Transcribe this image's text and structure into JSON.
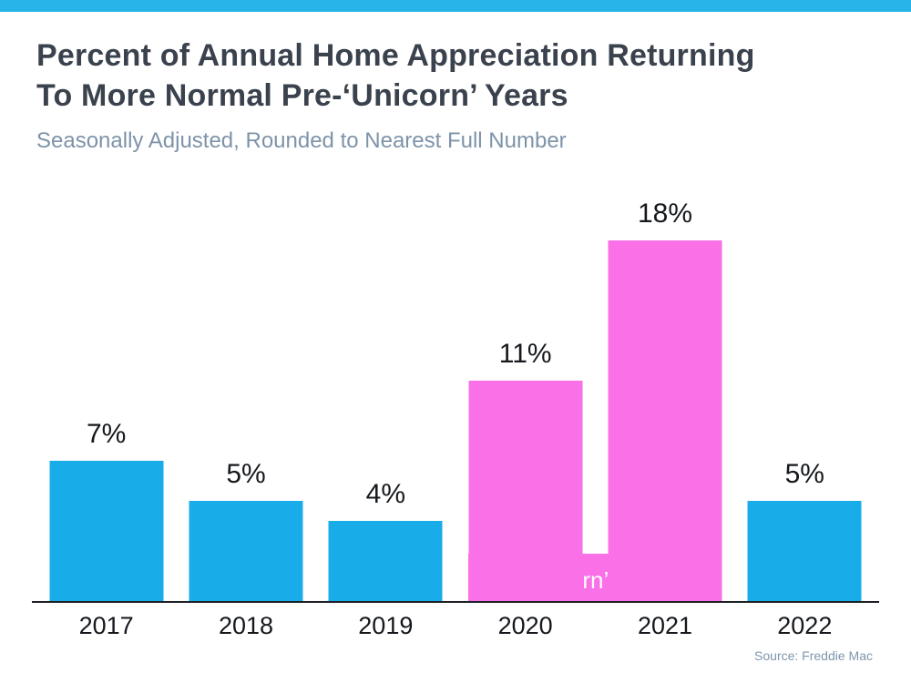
{
  "accent": {
    "top_bar_color": "#29b4e8"
  },
  "header": {
    "title_line1": "Percent of Annual Home Appreciation Returning",
    "title_line2": "To More Normal Pre-‘Unicorn’ Years",
    "subtitle": "Seasonally Adjusted, Rounded to Nearest Full Number"
  },
  "chart_data": {
    "type": "bar",
    "title": "Percent of Annual Home Appreciation Returning To More Normal Pre-‘Unicorn’ Years",
    "subtitle": "Seasonally Adjusted, Rounded to Nearest Full Number",
    "categories": [
      "2017",
      "2018",
      "2019",
      "2020",
      "2021",
      "2022"
    ],
    "values": [
      7,
      5,
      4,
      11,
      18,
      5
    ],
    "value_labels": [
      "7%",
      "5%",
      "4%",
      "11%",
      "18%",
      "5%"
    ],
    "bar_colors": [
      "#18ade9",
      "#18ade9",
      "#18ade9",
      "#fa70e7",
      "#fa70e7",
      "#18ade9"
    ],
    "highlight": {
      "label": "‘Unicorn’ Years",
      "categories": [
        "2020",
        "2021"
      ],
      "color": "#fa70e7"
    },
    "xlabel": "",
    "ylabel": "",
    "ylim": [
      0,
      20
    ],
    "grid": false,
    "legend": false,
    "source": "Source: Freddie Mac"
  },
  "footer": {
    "source": "Source: Freddie Mac"
  }
}
